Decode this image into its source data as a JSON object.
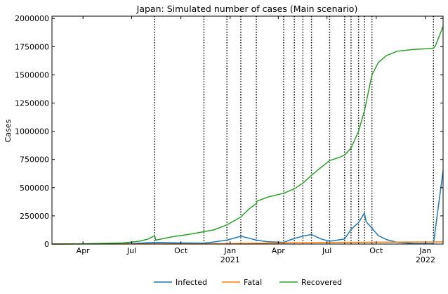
{
  "chart_data": {
    "type": "line",
    "title": "Japan: Simulated number of cases (Main scenario)",
    "xlabel": "",
    "ylabel": "Cases",
    "ylim": [
      0,
      2020000
    ],
    "xlim": [
      "2020-02-03",
      "2022-02-03"
    ],
    "grid": false,
    "legend_position": "bottom-center",
    "y_ticks": [
      0,
      250000,
      500000,
      750000,
      1000000,
      1250000,
      1500000,
      1750000,
      2000000
    ],
    "y_tick_labels": [
      "0",
      "250000",
      "500000",
      "750000",
      "1000000",
      "1250000",
      "1500000",
      "1750000",
      "2000000"
    ],
    "x_ticks": [
      {
        "date": "2020-04-01",
        "label": "Apr"
      },
      {
        "date": "2020-07-01",
        "label": "Jul"
      },
      {
        "date": "2020-10-01",
        "label": "Oct"
      },
      {
        "date": "2021-01-01",
        "label": "Jan",
        "sublabel": "2021"
      },
      {
        "date": "2021-04-01",
        "label": "Apr"
      },
      {
        "date": "2021-07-01",
        "label": "Jul"
      },
      {
        "date": "2021-10-01",
        "label": "Oct"
      },
      {
        "date": "2022-01-01",
        "label": "Jan",
        "sublabel": "2022"
      }
    ],
    "phase_change_dates": [
      "2020-08-13",
      "2020-11-13",
      "2020-12-26",
      "2021-01-21",
      "2021-02-19",
      "2021-04-11",
      "2021-05-01",
      "2021-05-17",
      "2021-06-02",
      "2021-07-06",
      "2021-08-03",
      "2021-08-15",
      "2021-08-29",
      "2021-09-09",
      "2021-09-23",
      "2022-01-16"
    ],
    "series": [
      {
        "name": "Infected",
        "color": "#1f77b4",
        "points": [
          [
            "2020-02-03",
            0
          ],
          [
            "2020-03-15",
            1000
          ],
          [
            "2020-05-01",
            2500
          ],
          [
            "2020-06-01",
            3000
          ],
          [
            "2020-07-01",
            5000
          ],
          [
            "2020-08-01",
            12000
          ],
          [
            "2020-08-13",
            15000
          ],
          [
            "2020-09-01",
            13000
          ],
          [
            "2020-10-01",
            10000
          ],
          [
            "2020-11-13",
            9000
          ],
          [
            "2020-12-01",
            18000
          ],
          [
            "2020-12-26",
            35000
          ],
          [
            "2021-01-21",
            70000
          ],
          [
            "2021-02-19",
            35000
          ],
          [
            "2021-03-10",
            22000
          ],
          [
            "2021-04-11",
            15000
          ],
          [
            "2021-05-01",
            50000
          ],
          [
            "2021-05-17",
            70000
          ],
          [
            "2021-06-02",
            85000
          ],
          [
            "2021-06-20",
            45000
          ],
          [
            "2021-07-06",
            25000
          ],
          [
            "2021-08-03",
            45000
          ],
          [
            "2021-08-15",
            130000
          ],
          [
            "2021-08-29",
            190000
          ],
          [
            "2021-09-09",
            275000
          ],
          [
            "2021-09-12",
            200000
          ],
          [
            "2021-09-23",
            140000
          ],
          [
            "2021-10-05",
            75000
          ],
          [
            "2021-10-20",
            40000
          ],
          [
            "2021-11-10",
            15000
          ],
          [
            "2021-12-10",
            5000
          ],
          [
            "2022-01-16",
            3000
          ],
          [
            "2022-02-03",
            650000
          ]
        ]
      },
      {
        "name": "Fatal",
        "color": "#ff7f0e",
        "points": [
          [
            "2020-02-03",
            0
          ],
          [
            "2020-05-01",
            600
          ],
          [
            "2020-08-01",
            1000
          ],
          [
            "2020-11-01",
            2000
          ],
          [
            "2021-01-01",
            3500
          ],
          [
            "2021-03-01",
            8000
          ],
          [
            "2021-05-01",
            11000
          ],
          [
            "2021-07-01",
            14000
          ],
          [
            "2021-09-01",
            15500
          ],
          [
            "2021-11-01",
            17500
          ],
          [
            "2022-01-16",
            18500
          ],
          [
            "2022-02-03",
            19500
          ]
        ]
      },
      {
        "name": "Recovered",
        "color": "#2ca02c",
        "points": [
          [
            "2020-02-03",
            0
          ],
          [
            "2020-04-01",
            2000
          ],
          [
            "2020-05-15",
            7000
          ],
          [
            "2020-06-15",
            10000
          ],
          [
            "2020-07-15",
            25000
          ],
          [
            "2020-08-01",
            45000
          ],
          [
            "2020-08-13",
            75000
          ],
          [
            "2020-08-15",
            35000
          ],
          [
            "2020-09-15",
            65000
          ],
          [
            "2020-10-15",
            85000
          ],
          [
            "2020-11-13",
            110000
          ],
          [
            "2020-12-01",
            125000
          ],
          [
            "2020-12-26",
            170000
          ],
          [
            "2021-01-21",
            240000
          ],
          [
            "2021-02-05",
            310000
          ],
          [
            "2021-02-19",
            360000
          ],
          [
            "2021-02-20",
            380000
          ],
          [
            "2021-03-15",
            420000
          ],
          [
            "2021-04-11",
            450000
          ],
          [
            "2021-05-01",
            490000
          ],
          [
            "2021-05-17",
            540000
          ],
          [
            "2021-06-02",
            610000
          ],
          [
            "2021-06-20",
            680000
          ],
          [
            "2021-07-06",
            740000
          ],
          [
            "2021-07-25",
            770000
          ],
          [
            "2021-08-03",
            790000
          ],
          [
            "2021-08-15",
            850000
          ],
          [
            "2021-08-29",
            1000000
          ],
          [
            "2021-09-09",
            1180000
          ],
          [
            "2021-09-23",
            1500000
          ],
          [
            "2021-10-05",
            1610000
          ],
          [
            "2021-10-20",
            1670000
          ],
          [
            "2021-11-10",
            1710000
          ],
          [
            "2021-12-10",
            1725000
          ],
          [
            "2022-01-16",
            1735000
          ],
          [
            "2022-01-20",
            1760000
          ],
          [
            "2022-02-03",
            1930000
          ]
        ]
      }
    ]
  }
}
